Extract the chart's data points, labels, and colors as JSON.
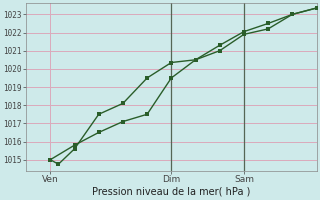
{
  "xlabel": "Pression niveau de la mer( hPa )",
  "bg_color": "#ceeaea",
  "grid_color": "#dbaabb",
  "line_color": "#2a5e2a",
  "ylim": [
    1014.4,
    1023.6
  ],
  "yticks": [
    1015,
    1016,
    1017,
    1018,
    1019,
    1020,
    1021,
    1022,
    1023
  ],
  "xlim": [
    0,
    72
  ],
  "xtick_positions": [
    6,
    36,
    54
  ],
  "xtick_labels": [
    "Ven",
    "Dim",
    "Sam"
  ],
  "vlines": [
    36,
    54
  ],
  "line1_x": [
    6,
    8,
    12,
    18,
    24,
    30,
    36,
    42,
    48,
    54,
    60,
    66,
    72
  ],
  "line1_y": [
    1015.0,
    1014.75,
    1015.6,
    1017.5,
    1018.1,
    1019.5,
    1020.35,
    1020.5,
    1021.3,
    1022.05,
    1022.5,
    1023.0,
    1023.35
  ],
  "line2_x": [
    6,
    12,
    18,
    24,
    30,
    36,
    42,
    48,
    54,
    60,
    66,
    72
  ],
  "line2_y": [
    1015.0,
    1015.8,
    1016.5,
    1017.1,
    1017.5,
    1019.5,
    1020.5,
    1021.0,
    1021.9,
    1022.2,
    1023.0,
    1023.35
  ],
  "figsize": [
    3.2,
    2.0
  ],
  "dpi": 100
}
